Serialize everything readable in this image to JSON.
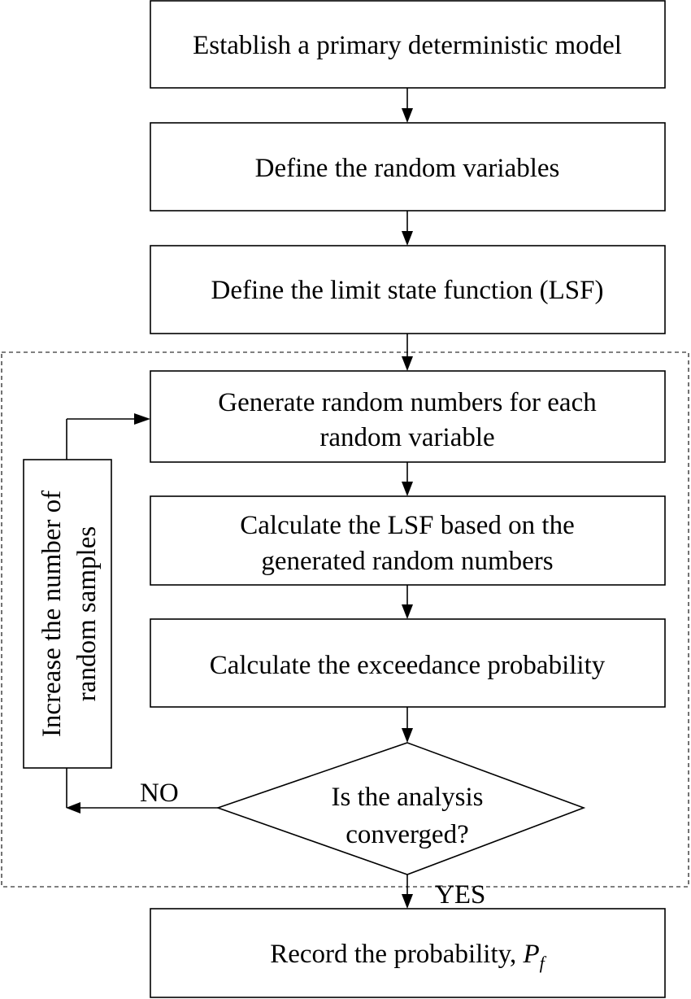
{
  "steps": {
    "establish_model": "Establish a primary deterministic model",
    "define_variables": "Define the random variables",
    "define_lsf": "Define the limit state function (LSF)",
    "generate_numbers": [
      "Generate random numbers for each",
      "random variable"
    ],
    "calculate_lsf": [
      "Calculate the LSF based on the",
      "generated random numbers"
    ],
    "calculate_probability": "Calculate the exceedance probability",
    "decision": [
      "Is the analysis",
      "converged?"
    ],
    "record_label": "Record the probability, ",
    "record_symbol": "P",
    "record_subscript": "f",
    "loop_action": [
      "Increase the number of",
      "random samples"
    ]
  },
  "labels": {
    "no": "NO",
    "yes": "YES"
  }
}
